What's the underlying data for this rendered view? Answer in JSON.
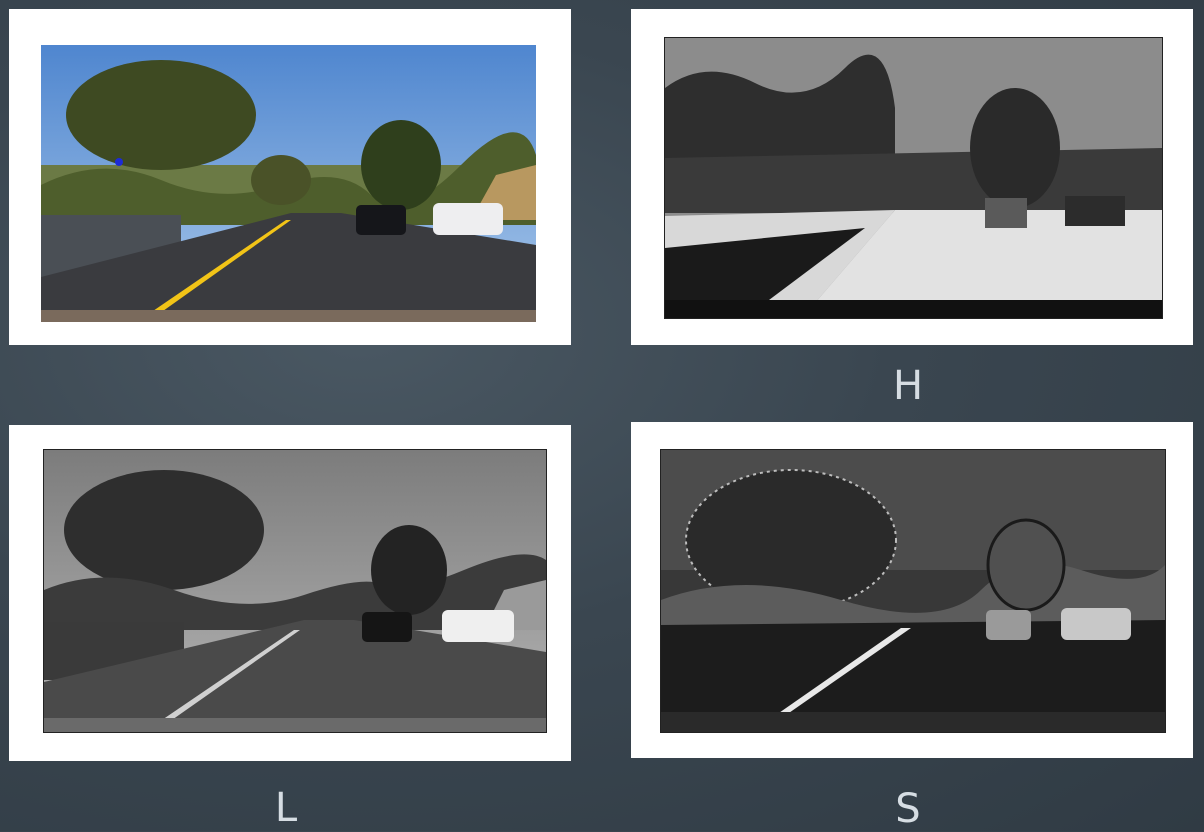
{
  "panels": [
    {
      "id": "original",
      "caption": ""
    },
    {
      "id": "h_channel",
      "caption": "H"
    },
    {
      "id": "l_channel",
      "caption": "L"
    },
    {
      "id": "s_channel",
      "caption": "S"
    }
  ],
  "colors": {
    "background": "#3a4650",
    "card": "#ffffff",
    "caption": "#d6dde3",
    "sky": "#5f8fd0",
    "lane_yellow": "#f2c417"
  }
}
